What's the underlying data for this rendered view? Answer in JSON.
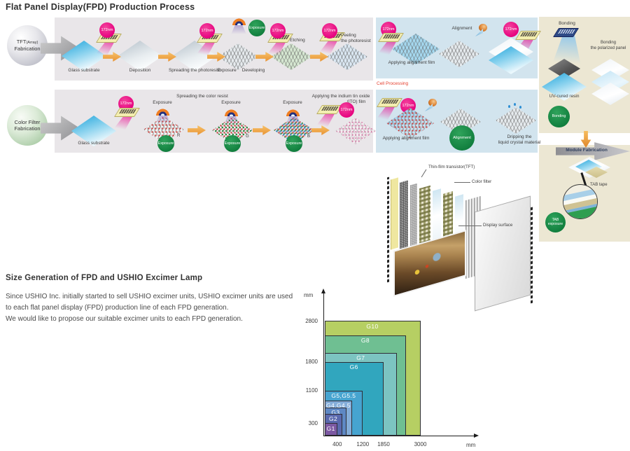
{
  "title": "Flat Panel Display(FPD) Production Process",
  "common": {
    "lamp_label": "172nm",
    "exposure_label": "Exposure"
  },
  "row1": {
    "source_l1": "TFT",
    "source_sub": "(Array)",
    "source_l2": "Fabrication",
    "steps": {
      "glass": "Glass substrate",
      "deposition": "Deposition",
      "spreading": "Spreading the photoresist",
      "exposure": "Exposure",
      "developing": "Developing"
    },
    "etching": "Etching",
    "peeling1": "Peeling",
    "peeling2": "the photoresist"
  },
  "cell1": {
    "applying": "Applying alignment film",
    "alignment": "Alignment",
    "caption": "Cell Processing"
  },
  "row2": {
    "source_l1": "Color Filter",
    "source_l2": "Fabrication",
    "header": "Spreading the color resist",
    "glass": "Glass substrate",
    "r": "R",
    "g": "G",
    "b": "B",
    "ito1": "Applying the indium tin oxide",
    "ito2": "(ITO) film"
  },
  "cell2": {
    "applying": "Applying alignment film",
    "alignment_badge": "Alignment",
    "dripping1": "Dripping the",
    "dripping2": "liquid crystal material"
  },
  "bonding": {
    "title": "Bonding",
    "uv": "UV-cured resin",
    "pol1": "Bonding",
    "pol2": "the polarized panel",
    "badge": "Bonding"
  },
  "module": {
    "title": "Module Fabrication",
    "tab_tape": "TAB tape",
    "badge1": "TAB",
    "badge2": "exposure"
  },
  "lcd": {
    "tft": "Thin-film transistor(TFT)",
    "cf": "Color filter",
    "ds": "Display surface"
  },
  "size_section": {
    "heading": "Size Generation of FPD and USHIO Excimer Lamp",
    "p1": "Since USHIO Inc. initially started to sell USHIO excimer units, USHIO excimer units are used to each flat panel display (FPD) production line of each FPD generation.",
    "p2": "We would like to propose our suitable excimer units to each FPD generation."
  },
  "colors": {
    "accent_pink": "#e6017e",
    "badge_green": "#0f7c3c",
    "cell_caption_red": "#e53e2c",
    "process_panel_bg": "#e9e6e9",
    "cell_panel_bg": "#d2e4ee",
    "beige_panel_bg": "#ece7d3"
  },
  "chart_data": {
    "type": "area",
    "subtype": "nested_size_rectangles",
    "title": "Size Generation of FPD and USHIO Excimer Lamp",
    "xlabel": "mm",
    "ylabel": "mm",
    "xlim": [
      0,
      3600
    ],
    "ylim": [
      0,
      3200
    ],
    "x_ticks": [
      400,
      1200,
      1850,
      3000
    ],
    "y_ticks": [
      300,
      1100,
      1800,
      2800
    ],
    "grid": false,
    "series": [
      {
        "label": "G10",
        "width_mm": 3000,
        "height_mm": 2800,
        "color": "#b6cf63"
      },
      {
        "label": "G8",
        "width_mm": 2560,
        "height_mm": 2450,
        "color": "#6fbf92"
      },
      {
        "label": "G7",
        "width_mm": 2270,
        "height_mm": 2020,
        "color": "#7cc4c1"
      },
      {
        "label": "G6",
        "width_mm": 1850,
        "height_mm": 1800,
        "color": "#31a6be"
      },
      {
        "label": "G5,G5.5",
        "width_mm": 1200,
        "height_mm": 1100,
        "color": "#46a4d0"
      },
      {
        "label": "G4,G4.5",
        "width_mm": 875,
        "height_mm": 855,
        "color": "#84add9"
      },
      {
        "label": "G3",
        "width_mm": 700,
        "height_mm": 685,
        "color": "#5e88c4"
      },
      {
        "label": "G2",
        "width_mm": 550,
        "height_mm": 530,
        "color": "#5a69ae"
      },
      {
        "label": "G1",
        "width_mm": 400,
        "height_mm": 300,
        "color": "#7c58a2"
      }
    ]
  }
}
